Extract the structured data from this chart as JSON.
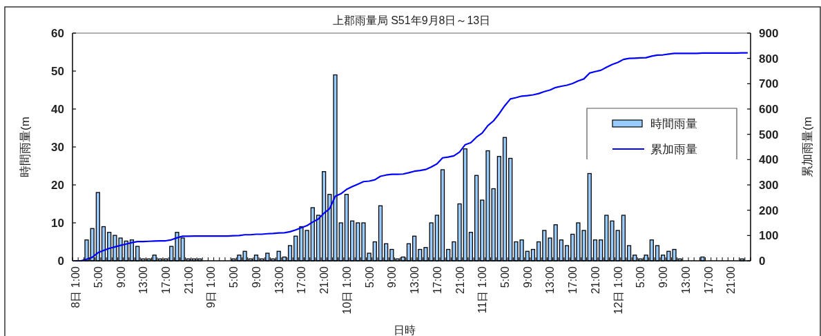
{
  "chart_data": {
    "type": "bar",
    "title": "上郡雨量局  S51年9月8日～13日",
    "xlabel": "日時",
    "ylabel": "時間雨量(m",
    "y2label": "累加雨量(m",
    "categories": [
      "8日 1:00",
      null,
      null,
      null,
      "5:00",
      null,
      null,
      null,
      "9:00",
      null,
      null,
      null,
      "13:00",
      null,
      null,
      null,
      "17:00",
      null,
      null,
      null,
      "21:00",
      null,
      null,
      null,
      "9日 1:00",
      null,
      null,
      null,
      "5:00",
      null,
      null,
      null,
      "9:00",
      null,
      null,
      null,
      "13:00",
      null,
      null,
      null,
      "17:00",
      null,
      null,
      null,
      "21:00",
      null,
      null,
      null,
      "10日 1:00",
      null,
      null,
      null,
      "5:00",
      null,
      null,
      null,
      "9:00",
      null,
      null,
      null,
      "13:00",
      null,
      null,
      null,
      "17:00",
      null,
      null,
      null,
      "21:00",
      null,
      null,
      null,
      "11日 1:00",
      null,
      null,
      null,
      "5:00",
      null,
      null,
      null,
      "9:00",
      null,
      null,
      null,
      "13:00",
      null,
      null,
      null,
      "17:00",
      null,
      null,
      null,
      "21:00",
      null,
      null,
      null,
      "12日 1:00",
      null,
      null,
      null,
      "5:00",
      null,
      null,
      null,
      "9:00",
      null,
      null,
      null,
      "13:00",
      null,
      null,
      null,
      "17:00",
      null,
      null,
      null,
      "21:00",
      null,
      null,
      null
    ],
    "series": [
      {
        "name": "時間雨量",
        "color": "#99ccff",
        "values": [
          0,
          0,
          5.5,
          8.5,
          18,
          9,
          7.5,
          6.7,
          6,
          5.2,
          5.5,
          3.8,
          0.5,
          0.5,
          1.5,
          0.5,
          0.5,
          3.8,
          7.5,
          6,
          0.5,
          0.5,
          0.5,
          0,
          0,
          0,
          0,
          0,
          0.5,
          1.5,
          2.5,
          0.5,
          1.5,
          0.5,
          2,
          0.5,
          2.5,
          1,
          4,
          6.5,
          9,
          8,
          14,
          12,
          23.5,
          17.5,
          49,
          10,
          17.5,
          10.5,
          10,
          10,
          2,
          5,
          14.5,
          4.5,
          3,
          0.5,
          1,
          4.5,
          6.5,
          3,
          3.5,
          10,
          12,
          24,
          3,
          5,
          15,
          29.5,
          7.5,
          22.5,
          16,
          29,
          19,
          27.5,
          32.5,
          27,
          5,
          5.5,
          2.5,
          3,
          5,
          8,
          6,
          9.5,
          5.5,
          4,
          7,
          10,
          8,
          23,
          5.5,
          5.5,
          12,
          10.5,
          8,
          12,
          4,
          1.5,
          0.5,
          1.5,
          5.5,
          4,
          1.5,
          2.5,
          3,
          0.5,
          0,
          0,
          0,
          1,
          0,
          0,
          0,
          0,
          0,
          0,
          0.5,
          0
        ]
      },
      {
        "name": "累加雨量",
        "type": "line",
        "axis": "y2",
        "color": "#0000ff",
        "values": [
          0,
          0,
          6,
          14,
          32,
          41,
          49,
          55,
          61,
          66,
          72,
          76,
          76,
          77,
          78,
          79,
          79,
          83,
          91,
          97,
          97,
          98,
          98,
          98,
          98,
          98,
          98,
          98,
          99,
          100,
          103,
          103,
          105,
          105,
          107,
          108,
          110,
          111,
          115,
          122,
          131,
          139,
          153,
          165,
          188,
          206,
          255,
          265,
          282,
          293,
          303,
          313,
          315,
          320,
          334,
          339,
          342,
          342,
          343,
          348,
          354,
          357,
          361,
          371,
          383,
          407,
          410,
          415,
          430,
          459,
          467,
          489,
          505,
          534,
          553,
          581,
          613,
          640,
          645,
          651,
          653,
          656,
          661,
          669,
          675,
          685,
          690,
          694,
          701,
          711,
          719,
          742,
          748,
          753,
          765,
          776,
          784,
          796,
          800,
          801,
          802,
          803,
          809,
          813,
          814,
          817,
          820,
          820,
          820,
          820,
          820,
          821,
          821,
          821,
          821,
          821,
          821,
          821,
          822,
          822
        ]
      }
    ],
    "ylim": [
      0,
      60
    ],
    "yticks": [
      0,
      10,
      20,
      30,
      40,
      50,
      60
    ],
    "y2lim": [
      0,
      900
    ],
    "y2ticks": [
      0,
      100,
      200,
      300,
      400,
      500,
      600,
      700,
      800,
      900
    ],
    "legend": "right",
    "grid": false
  }
}
